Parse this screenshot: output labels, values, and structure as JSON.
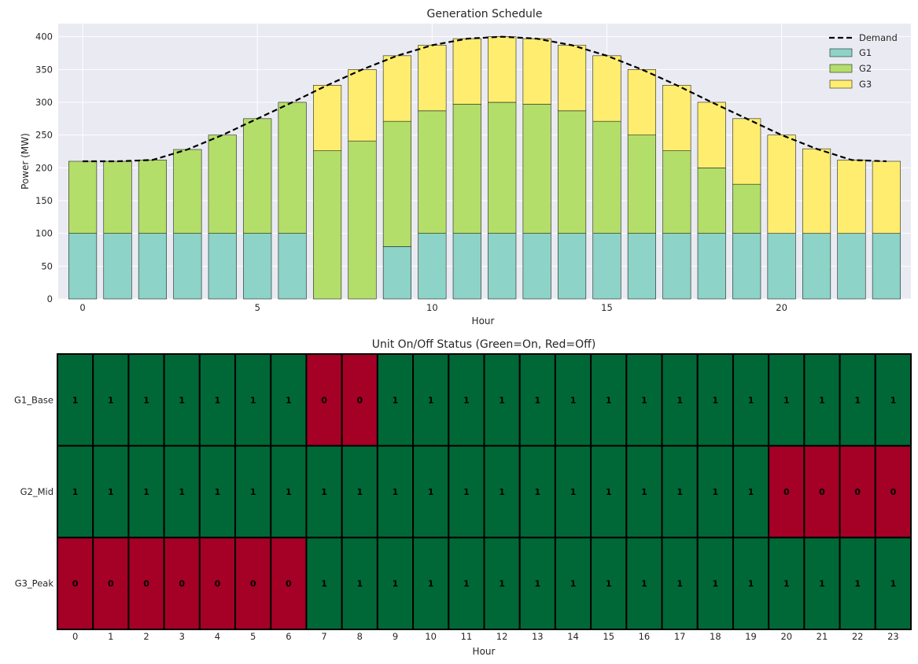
{
  "chart_data": [
    {
      "type": "bar",
      "stacked": true,
      "title": "Generation Schedule",
      "xlabel": "Hour",
      "ylabel": "Power (MW)",
      "ylim": [
        0,
        420
      ],
      "xlim": [
        -0.7,
        23.7
      ],
      "grid": true,
      "legend_position": "top-right",
      "x": [
        0,
        1,
        2,
        3,
        4,
        5,
        6,
        7,
        8,
        9,
        10,
        11,
        12,
        13,
        14,
        15,
        16,
        17,
        18,
        19,
        20,
        21,
        22,
        23
      ],
      "x_ticks": [
        0,
        5,
        10,
        15,
        20
      ],
      "y_ticks": [
        0,
        50,
        100,
        150,
        200,
        250,
        300,
        350,
        400
      ],
      "series": [
        {
          "name": "G1",
          "color": "#8dd3c7",
          "values": [
            100,
            100,
            100,
            100,
            100,
            100,
            100,
            0,
            0,
            80,
            100,
            100,
            100,
            100,
            100,
            100,
            100,
            100,
            100,
            100,
            100,
            100,
            100,
            100
          ]
        },
        {
          "name": "G2",
          "color": "#b3de69",
          "values": [
            110,
            110,
            112,
            128,
            150,
            175,
            200,
            226,
            241,
            191,
            187,
            197,
            200,
            197,
            187,
            171,
            150,
            126,
            100,
            75,
            0,
            0,
            0,
            0
          ]
        },
        {
          "name": "G3",
          "color": "#ffed6f",
          "values": [
            0,
            0,
            0,
            0,
            0,
            0,
            0,
            100,
            109,
            100,
            100,
            100,
            100,
            100,
            100,
            100,
            100,
            100,
            100,
            100,
            150,
            129,
            112,
            110
          ]
        }
      ],
      "demand": {
        "name": "Demand",
        "color": "#000000",
        "values": [
          210,
          210,
          212,
          228,
          250,
          275,
          300,
          326,
          350,
          371,
          387,
          397,
          400,
          397,
          387,
          371,
          350,
          326,
          300,
          275,
          250,
          229,
          212,
          210
        ]
      }
    },
    {
      "type": "heatmap",
      "title": "Unit On/Off Status (Green=On, Red=Off)",
      "xlabel": "Hour",
      "rows": [
        "G1_Base",
        "G2_Mid",
        "G3_Peak"
      ],
      "columns": [
        0,
        1,
        2,
        3,
        4,
        5,
        6,
        7,
        8,
        9,
        10,
        11,
        12,
        13,
        14,
        15,
        16,
        17,
        18,
        19,
        20,
        21,
        22,
        23
      ],
      "on_color": "#006837",
      "off_color": "#a50026",
      "values": [
        [
          1,
          1,
          1,
          1,
          1,
          1,
          1,
          0,
          0,
          1,
          1,
          1,
          1,
          1,
          1,
          1,
          1,
          1,
          1,
          1,
          1,
          1,
          1,
          1
        ],
        [
          1,
          1,
          1,
          1,
          1,
          1,
          1,
          1,
          1,
          1,
          1,
          1,
          1,
          1,
          1,
          1,
          1,
          1,
          1,
          1,
          0,
          0,
          0,
          0
        ],
        [
          0,
          0,
          0,
          0,
          0,
          0,
          0,
          1,
          1,
          1,
          1,
          1,
          1,
          1,
          1,
          1,
          1,
          1,
          1,
          1,
          1,
          1,
          1,
          1
        ]
      ]
    }
  ]
}
